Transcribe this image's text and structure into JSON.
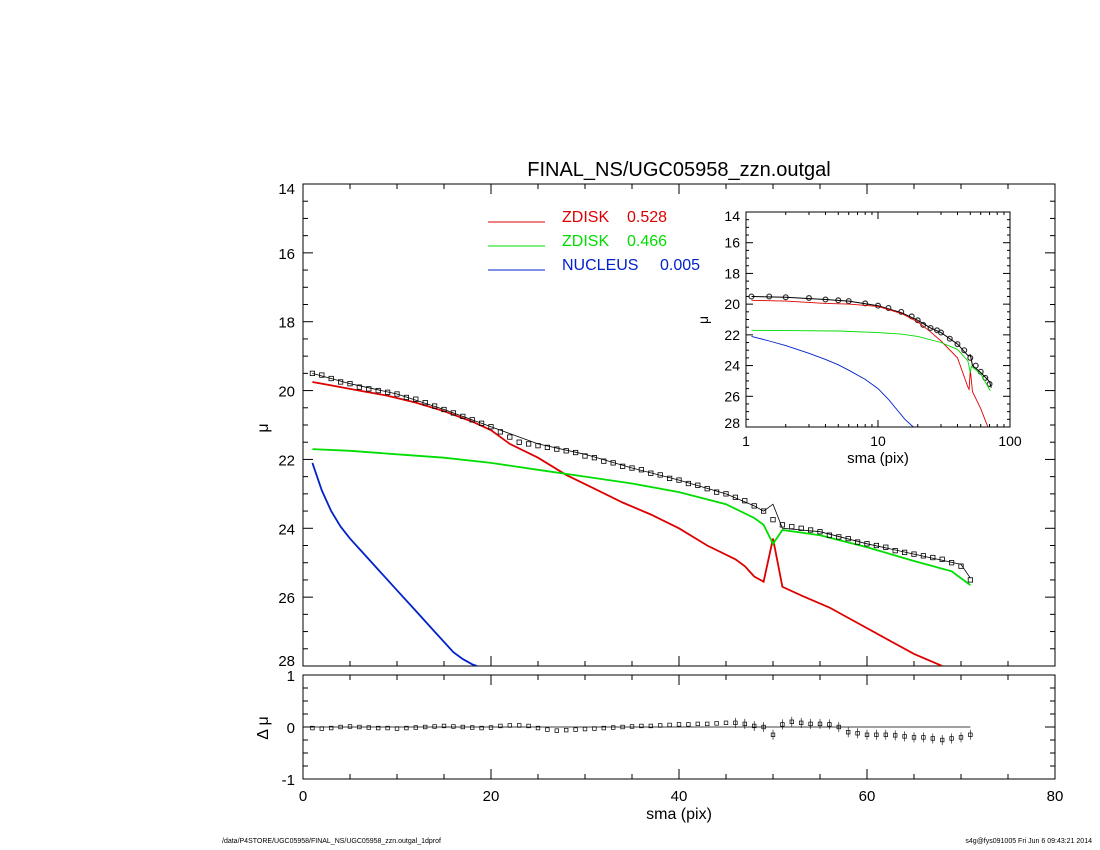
{
  "title": "FINAL_NS/UGC05958_zzn.outgal",
  "footer": {
    "left": "/data/P4STORE/UGC05958/FINAL_NS/UGC05958_zzn.outgal_1dprof",
    "right": "s4g@fys091005  Fri Jun  6 09:43:21 2014"
  },
  "colors": {
    "zdisk1": "#dd0000",
    "zdisk2": "#00dd00",
    "nucleus": "#0022cc",
    "data": "#000000"
  },
  "legend": [
    {
      "label": "ZDISK",
      "value": "0.528",
      "color": "#dd0000"
    },
    {
      "label": "ZDISK",
      "value": "0.466",
      "color": "#00dd00"
    },
    {
      "label": "NUCLEUS",
      "value": "0.005",
      "color": "#0022cc"
    }
  ],
  "chart_data": [
    {
      "type": "line",
      "panel": "main",
      "xlabel": "sma (pix)",
      "ylabel": "μ",
      "xlim": [
        0,
        80
      ],
      "ylim": [
        28,
        14
      ],
      "yticks": [
        "14",
        "16",
        "18",
        "20",
        "22",
        "24",
        "26",
        "28"
      ],
      "series": [
        {
          "name": "ZDISK 0.528",
          "color": "#dd0000",
          "x": [
            1,
            3,
            6,
            9,
            12,
            15,
            18,
            20,
            22,
            25,
            28,
            31,
            34,
            37,
            40,
            43,
            46,
            47,
            48,
            49,
            50,
            51,
            53,
            56,
            59,
            62,
            65,
            68
          ],
          "y": [
            19.75,
            19.85,
            20.0,
            20.15,
            20.35,
            20.6,
            20.9,
            21.15,
            21.55,
            21.95,
            22.45,
            22.85,
            23.25,
            23.6,
            24.0,
            24.5,
            24.9,
            25.1,
            25.4,
            25.55,
            24.3,
            25.7,
            25.95,
            26.3,
            26.75,
            27.2,
            27.65,
            28.0
          ]
        },
        {
          "name": "ZDISK 0.466",
          "color": "#00dd00",
          "x": [
            1,
            5,
            10,
            15,
            20,
            25,
            30,
            35,
            40,
            45,
            48,
            49,
            50,
            51,
            55,
            60,
            65,
            69,
            71
          ],
          "y": [
            21.7,
            21.75,
            21.85,
            21.95,
            22.1,
            22.3,
            22.5,
            22.7,
            22.95,
            23.3,
            23.7,
            23.9,
            24.45,
            24.05,
            24.2,
            24.55,
            24.95,
            25.25,
            25.65
          ]
        },
        {
          "name": "NUCLEUS 0.005",
          "color": "#0022cc",
          "x": [
            1,
            2,
            3,
            4,
            5,
            6,
            8,
            10,
            12,
            14,
            16,
            17,
            18,
            18.5
          ],
          "y": [
            22.1,
            22.9,
            23.5,
            23.95,
            24.3,
            24.6,
            25.2,
            25.8,
            26.4,
            27.0,
            27.6,
            27.8,
            27.95,
            28.0
          ]
        },
        {
          "name": "",
          "color": "#000000",
          "style": "points",
          "x": [
            1,
            2,
            3,
            4,
            5,
            6,
            7,
            8,
            9,
            10,
            11,
            12,
            13,
            14,
            15,
            16,
            17,
            18,
            19,
            20,
            21,
            22,
            23,
            24,
            25,
            26,
            27,
            28,
            29,
            30,
            31,
            32,
            33,
            34,
            35,
            36,
            37,
            38,
            39,
            40,
            41,
            42,
            43,
            44,
            45,
            46,
            47,
            48,
            49,
            50,
            51,
            52,
            53,
            54,
            55,
            56,
            57,
            58,
            59,
            60,
            61,
            62,
            63,
            64,
            65,
            66,
            67,
            68,
            69,
            70,
            71
          ],
          "y": [
            19.5,
            19.55,
            19.65,
            19.75,
            19.8,
            19.9,
            19.95,
            20.0,
            20.05,
            20.1,
            20.2,
            20.25,
            20.35,
            20.45,
            20.55,
            20.65,
            20.75,
            20.85,
            20.95,
            21.05,
            21.2,
            21.35,
            21.5,
            21.55,
            21.6,
            21.65,
            21.7,
            21.75,
            21.8,
            21.9,
            21.95,
            22.05,
            22.1,
            22.2,
            22.25,
            22.3,
            22.4,
            22.45,
            22.55,
            22.6,
            22.7,
            22.75,
            22.85,
            22.95,
            23.0,
            23.1,
            23.2,
            23.35,
            23.5,
            23.75,
            23.9,
            23.95,
            24.0,
            24.05,
            24.1,
            24.2,
            24.25,
            24.3,
            24.4,
            24.45,
            24.5,
            24.55,
            24.65,
            24.7,
            24.75,
            24.8,
            24.85,
            24.9,
            25.0,
            25.1,
            25.5
          ]
        },
        {
          "name": "",
          "color": "#000000",
          "style": "thin-line",
          "x": [
            1,
            5,
            10,
            15,
            20,
            25,
            30,
            35,
            40,
            45,
            48,
            49,
            50,
            51,
            55,
            60,
            65,
            70,
            71
          ],
          "y": [
            19.5,
            19.8,
            20.1,
            20.55,
            21.05,
            21.55,
            21.85,
            22.25,
            22.6,
            23.0,
            23.35,
            23.5,
            23.3,
            24.0,
            24.1,
            24.45,
            24.75,
            25.05,
            25.45
          ]
        }
      ]
    },
    {
      "type": "scatter",
      "panel": "residual",
      "xlabel": "sma (pix)",
      "ylabel": "Δ μ",
      "xlim": [
        0,
        80
      ],
      "ylim": [
        -1,
        1
      ],
      "xticks": [
        "0",
        "20",
        "40",
        "60",
        "80"
      ],
      "yticks": [
        "-1",
        "0",
        "1"
      ],
      "reference_line": 0,
      "series": [
        {
          "name": "",
          "color": "#000000",
          "x": [
            1,
            2,
            3,
            4,
            5,
            6,
            7,
            8,
            9,
            10,
            11,
            12,
            13,
            14,
            15,
            16,
            17,
            18,
            19,
            20,
            21,
            22,
            23,
            24,
            25,
            26,
            27,
            28,
            29,
            30,
            31,
            32,
            33,
            34,
            35,
            36,
            37,
            38,
            39,
            40,
            41,
            42,
            43,
            44,
            45,
            46,
            47,
            48,
            49,
            50,
            51,
            52,
            53,
            54,
            55,
            56,
            57,
            58,
            59,
            60,
            61,
            62,
            63,
            64,
            65,
            66,
            67,
            68,
            69,
            70,
            71
          ],
          "y": [
            -0.02,
            -0.03,
            -0.02,
            0.0,
            0.01,
            0.0,
            -0.01,
            -0.02,
            -0.02,
            -0.03,
            -0.02,
            -0.01,
            0.0,
            0.01,
            0.02,
            0.01,
            0.0,
            -0.01,
            -0.02,
            -0.01,
            0.02,
            0.03,
            0.03,
            0.02,
            -0.02,
            -0.05,
            -0.07,
            -0.06,
            -0.05,
            -0.04,
            -0.03,
            -0.02,
            -0.01,
            0.0,
            0.01,
            0.02,
            0.02,
            0.03,
            0.04,
            0.05,
            0.05,
            0.06,
            0.06,
            0.07,
            0.08,
            0.08,
            0.06,
            0.02,
            0.0,
            -0.15,
            0.05,
            0.1,
            0.08,
            0.06,
            0.06,
            0.05,
            0.0,
            -0.1,
            -0.12,
            -0.15,
            -0.15,
            -0.15,
            -0.16,
            -0.18,
            -0.2,
            -0.2,
            -0.22,
            -0.25,
            -0.22,
            -0.2,
            -0.15
          ]
        }
      ]
    },
    {
      "type": "line",
      "panel": "inset",
      "xlabel": "sma (pix)",
      "ylabel": "μ",
      "xscale": "log",
      "xlim": [
        1,
        100
      ],
      "ylim": [
        28,
        14
      ],
      "xticks": [
        "1",
        "10",
        "100"
      ],
      "yticks": [
        "14",
        "16",
        "18",
        "20",
        "22",
        "24",
        "26",
        "28"
      ],
      "series": [
        {
          "name": "",
          "color": "#000000",
          "style": "points",
          "x": [
            1.1,
            1.5,
            2,
            3,
            4,
            5,
            6,
            8,
            10,
            12,
            15,
            18,
            20,
            22,
            25,
            28,
            30,
            35,
            40,
            45,
            50,
            55,
            60,
            65,
            70
          ],
          "y": [
            19.5,
            19.5,
            19.55,
            19.6,
            19.7,
            19.75,
            19.8,
            19.95,
            20.1,
            20.25,
            20.5,
            20.8,
            21.05,
            21.35,
            21.55,
            21.7,
            21.85,
            22.25,
            22.6,
            23.0,
            23.5,
            24.0,
            24.4,
            24.8,
            25.2
          ]
        },
        {
          "name": "",
          "color": "#000000",
          "style": "thin-line",
          "x": [
            1.1,
            2,
            4,
            6,
            10,
            15,
            20,
            25,
            30,
            40,
            48,
            50,
            52,
            60,
            70,
            72
          ],
          "y": [
            19.5,
            19.55,
            19.7,
            19.8,
            20.1,
            20.55,
            21.05,
            21.55,
            21.85,
            22.6,
            23.35,
            23.3,
            24.0,
            24.45,
            25.05,
            25.45
          ]
        },
        {
          "name": "ZDISK 0.528",
          "color": "#dd0000",
          "x": [
            1.1,
            2,
            4,
            6,
            10,
            15,
            20,
            25,
            30,
            40,
            48,
            49,
            50,
            52,
            60,
            68
          ],
          "y": [
            19.75,
            19.8,
            19.95,
            20.0,
            20.15,
            20.6,
            21.15,
            21.8,
            22.4,
            23.5,
            25.4,
            25.55,
            24.3,
            25.7,
            26.8,
            28.0
          ]
        },
        {
          "name": "ZDISK 0.466",
          "color": "#00dd00",
          "x": [
            1.1,
            2,
            5,
            10,
            15,
            20,
            30,
            40,
            48,
            50,
            51,
            60,
            71
          ],
          "y": [
            21.7,
            21.72,
            21.75,
            21.85,
            21.95,
            22.1,
            22.5,
            22.95,
            23.7,
            24.45,
            24.05,
            24.55,
            25.65
          ]
        },
        {
          "name": "NUCLEUS 0.005",
          "color": "#0022cc",
          "x": [
            1.1,
            1.5,
            2,
            3,
            4,
            5,
            6,
            8,
            10,
            12,
            14,
            16,
            18.5
          ],
          "y": [
            22.1,
            22.4,
            22.7,
            23.2,
            23.6,
            23.95,
            24.3,
            24.9,
            25.5,
            26.2,
            26.9,
            27.5,
            28.0
          ]
        }
      ]
    }
  ]
}
